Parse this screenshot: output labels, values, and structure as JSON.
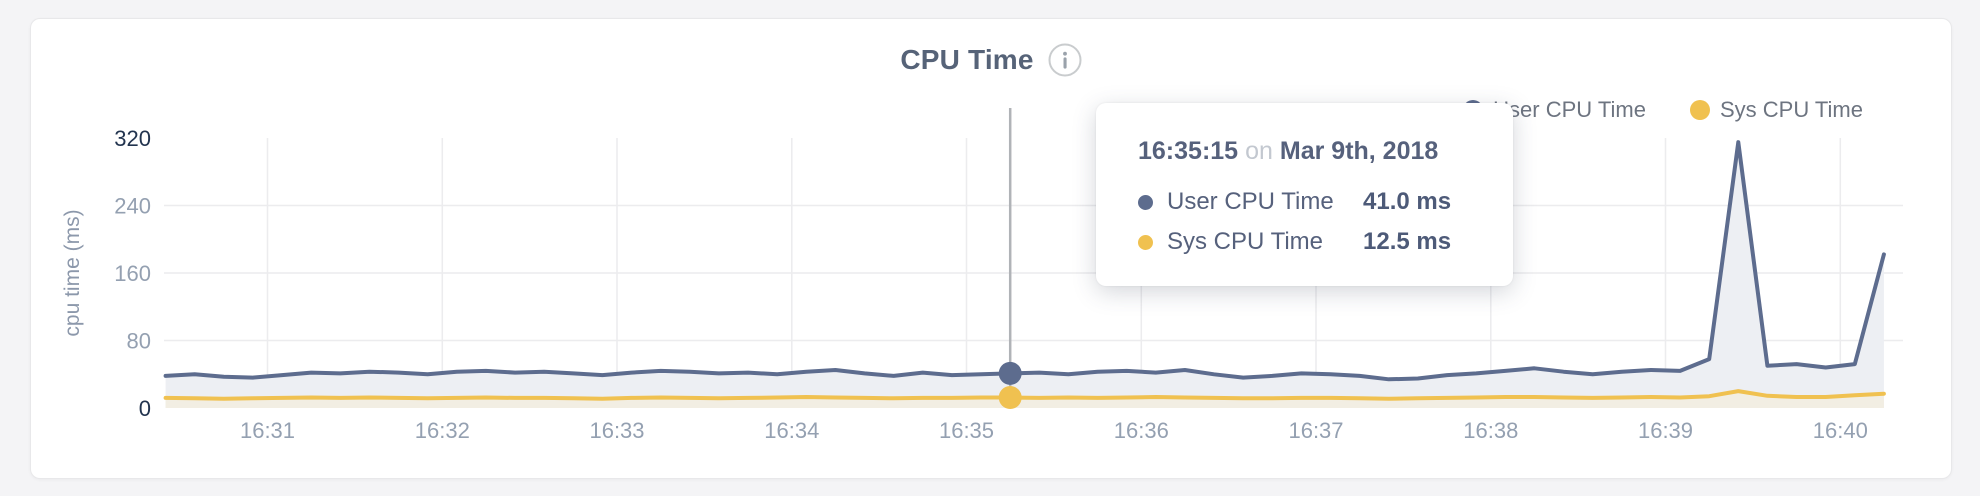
{
  "header": {
    "title": "CPU Time"
  },
  "legend": {
    "items": [
      {
        "label": "User CPU Time",
        "color": "#5d6c8e"
      },
      {
        "label": "Sys CPU Time",
        "color": "#f0c150"
      }
    ]
  },
  "tooltip": {
    "time": "16:35:15",
    "conjunction": "on",
    "date": "Mar 9th, 2018",
    "rows": [
      {
        "label": "User CPU Time",
        "value": "41.0 ms",
        "color": "#5d6c8e"
      },
      {
        "label": "Sys CPU Time",
        "value": "12.5 ms",
        "color": "#f0c150"
      }
    ]
  },
  "chart_data": {
    "type": "area",
    "title": "CPU Time",
    "xlabel": "",
    "ylabel": "cpu time (ms)",
    "ylim": [
      0,
      320
    ],
    "yticks": [
      0,
      80,
      160,
      240,
      320
    ],
    "xticks": [
      "16:31",
      "16:32",
      "16:33",
      "16:34",
      "16:35",
      "16:36",
      "16:37",
      "16:38",
      "16:39",
      "16:40"
    ],
    "x_start": "16:30:25",
    "x_step_s": 10,
    "grid": true,
    "legend_position": "top-right",
    "colors": {
      "grid": "#ececee",
      "crosshair": "#b0b3b7",
      "tick_dark": "#22344f",
      "tick_light": "#94a0b1"
    },
    "series": [
      {
        "name": "User CPU Time",
        "color": "#5d6c8e",
        "fill": "#edeff3",
        "values": [
          38,
          40,
          37,
          36,
          39,
          42,
          41,
          43,
          42,
          40,
          43,
          44,
          42,
          43,
          41,
          39,
          42,
          44,
          43,
          41,
          42,
          40,
          43,
          45,
          41,
          38,
          42,
          39,
          40,
          41,
          42,
          40,
          43,
          44,
          42,
          45,
          40,
          36,
          38,
          41,
          40,
          38,
          34,
          35,
          39,
          41,
          44,
          47,
          43,
          40,
          43,
          45,
          44,
          58,
          315,
          50,
          52,
          48,
          52,
          182
        ]
      },
      {
        "name": "Sys CPU Time",
        "color": "#f0c150",
        "fill": "#f2eee3",
        "values": [
          12,
          11.5,
          11,
          11.5,
          12,
          12.5,
          12,
          12.5,
          12,
          11.5,
          12,
          12.5,
          12,
          12,
          11.5,
          11,
          12,
          12.5,
          12,
          11.5,
          12,
          12.5,
          13,
          12.5,
          12,
          11.5,
          12,
          12,
          12.5,
          12.5,
          12,
          12.5,
          12,
          12.5,
          13,
          12.5,
          12,
          11.5,
          11.5,
          12,
          12,
          11.5,
          11,
          11.5,
          12,
          12.5,
          13,
          13,
          12.5,
          12,
          12.5,
          13,
          12.5,
          14,
          20,
          14.5,
          13,
          13,
          15,
          17
        ]
      }
    ],
    "hover": {
      "index": 29,
      "time": "16:35:15",
      "date": "Mar 9th, 2018",
      "values_ms": {
        "User CPU Time": 41.0,
        "Sys CPU Time": 12.5
      }
    }
  }
}
